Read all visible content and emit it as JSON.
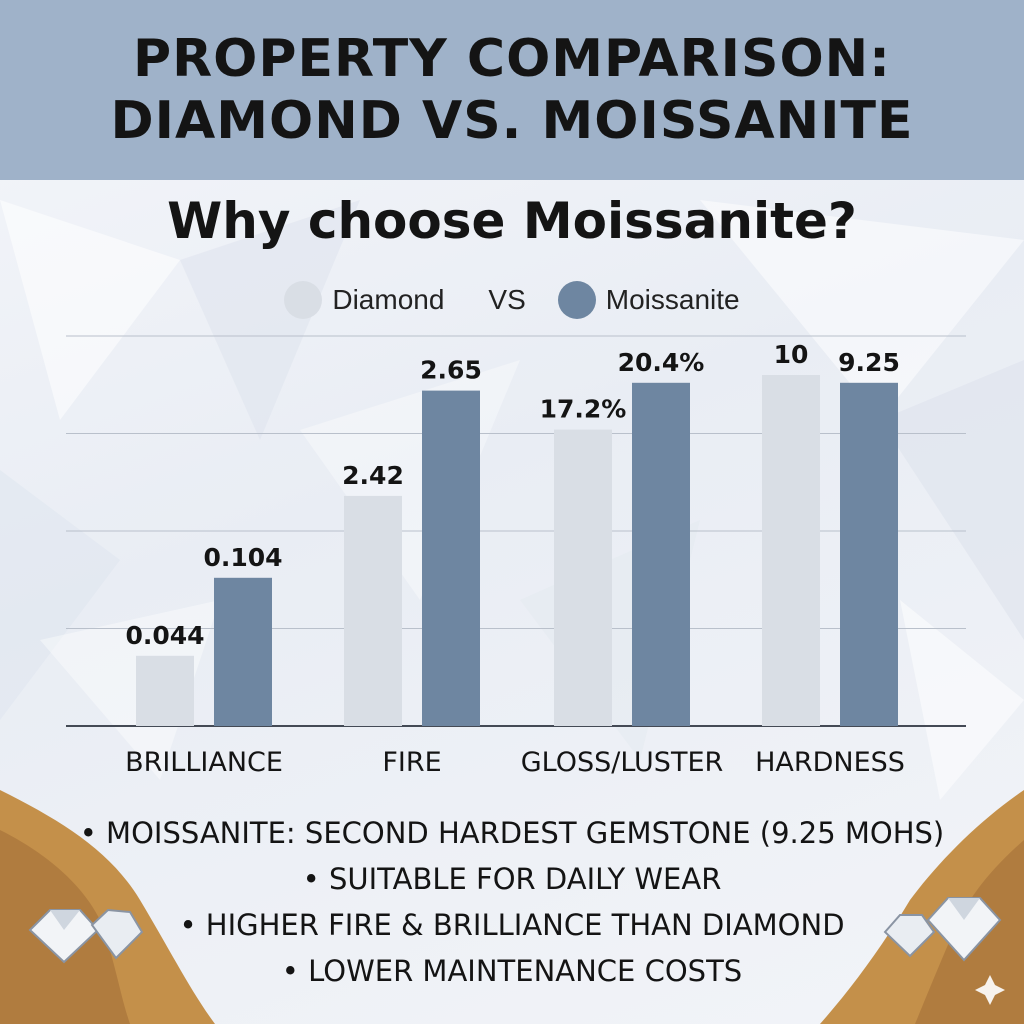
{
  "header": {
    "title_line1": "PROPERTY COMPARISON:",
    "title_line2": "DIAMOND VS. MOISSANITE"
  },
  "subtitle": "Why choose Moissanite?",
  "legend": {
    "diamond_label": "Diamond",
    "vs_label": "VS",
    "moissanite_label": "Moissanite"
  },
  "colors": {
    "diamond": "#d9dee5",
    "moissanite": "#6e86a1",
    "header_band": "#9fb2c9",
    "ribbon_gold": "#c4904a"
  },
  "chart_data": {
    "type": "bar",
    "categories": [
      "BRILLIANCE",
      "FIRE",
      "GLOSS/LUSTER",
      "HARDNESS"
    ],
    "series": [
      {
        "name": "Diamond",
        "values": [
          0.044,
          2.42,
          17.2,
          10
        ],
        "labels": [
          "0.044",
          "2.42",
          "17.2%",
          "10"
        ]
      },
      {
        "name": "Moissanite",
        "values": [
          0.104,
          2.65,
          20.4,
          9.25
        ],
        "labels": [
          "0.104",
          "2.65",
          "20.4%",
          "9.25"
        ]
      }
    ],
    "bar_fill_fraction": {
      "Diamond": [
        0.18,
        0.59,
        0.76,
        0.9
      ],
      "Moissanite": [
        0.38,
        0.86,
        0.88,
        0.88
      ]
    },
    "grid": true,
    "legend_position": "top-center"
  },
  "bullets": [
    "• MOISSANITE: SECOND HARDEST GEMSTONE (9.25 MOHS)",
    "• SUITABLE FOR DAILY WEAR",
    "• HIGHER FIRE & BRILLIANCE THAN DIAMOND",
    "• LOWER MAINTENANCE COSTS"
  ]
}
